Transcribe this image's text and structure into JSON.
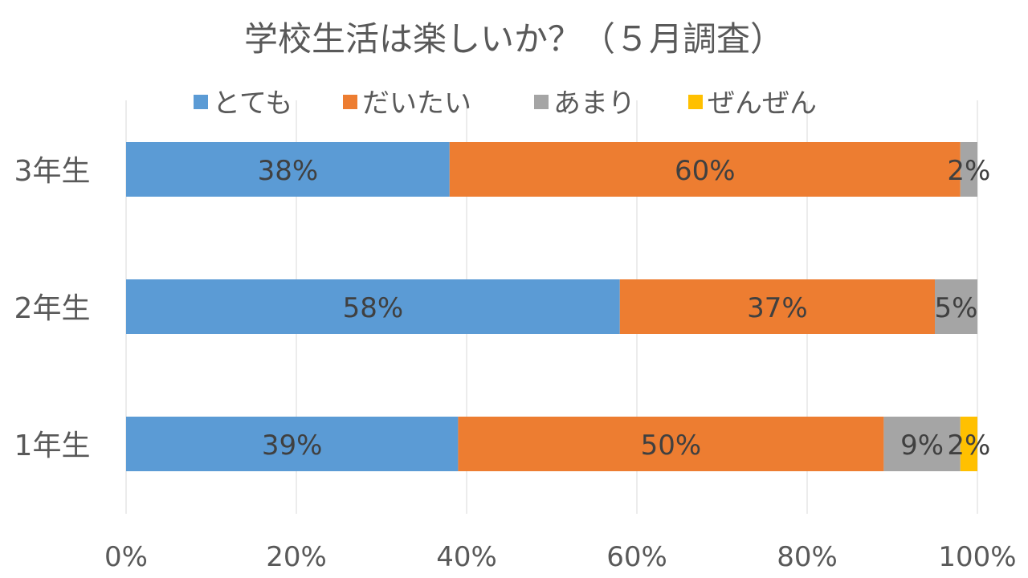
{
  "chart_data": {
    "type": "bar",
    "orientation": "horizontal",
    "stacked": "percent",
    "title": "学校生活は楽しいか？（５月調査）",
    "categories": [
      "3年生",
      "2年生",
      "1年生"
    ],
    "series": [
      {
        "name": "とても",
        "color": "#5B9BD5",
        "values": [
          38,
          58,
          39
        ],
        "labels": [
          "38%",
          "58%",
          "39%"
        ]
      },
      {
        "name": "だいたい",
        "color": "#ED7D31",
        "values": [
          60,
          37,
          50
        ],
        "labels": [
          "60%",
          "37%",
          "50%"
        ]
      },
      {
        "name": "あまり",
        "color": "#A5A5A5",
        "values": [
          2,
          5,
          9
        ],
        "labels": [
          "2%",
          "5%",
          "9%"
        ]
      },
      {
        "name": "ぜんぜん",
        "color": "#FFC000",
        "values": [
          0,
          0,
          2
        ],
        "labels": [
          "",
          "",
          "2%"
        ]
      }
    ],
    "x_ticks": [
      "0%",
      "20%",
      "40%",
      "60%",
      "80%",
      "100%"
    ],
    "xlim": [
      0,
      100
    ],
    "grid": "vertical",
    "legend": "top"
  }
}
